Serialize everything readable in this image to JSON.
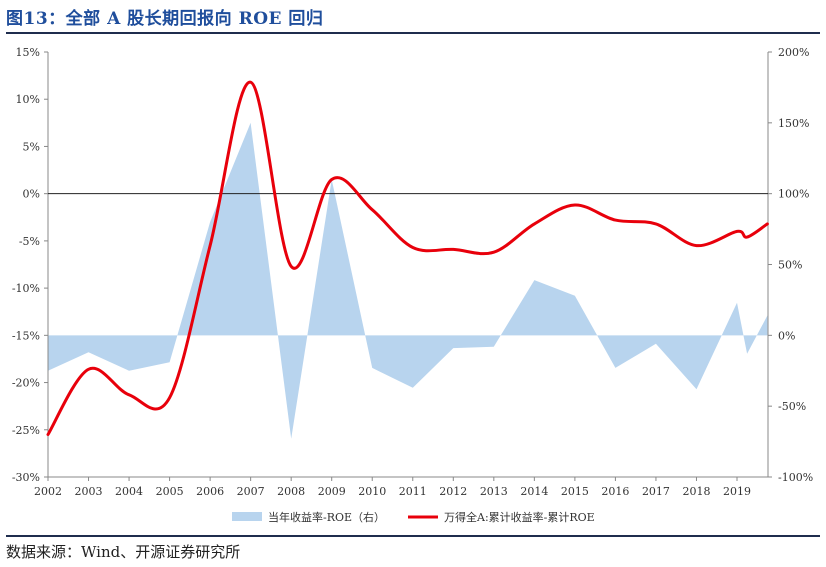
{
  "figure_title": "图13：全部 A 股长期回报向 ROE 回归",
  "source": "数据来源：Wind、开源证券研究所",
  "chart_data": {
    "type": "line",
    "x": [
      "2002",
      "2003",
      "2004",
      "2005",
      "2006",
      "2007",
      "2008",
      "2009",
      "2010",
      "2011",
      "2012",
      "2013",
      "2014",
      "2015",
      "2016",
      "2017",
      "2018",
      "2019"
    ],
    "left_axis": {
      "ylim": [
        -30,
        15
      ],
      "ticks": [
        15,
        10,
        5,
        0,
        -5,
        -10,
        -15,
        -20,
        -25,
        -30
      ],
      "tick_labels": [
        "15%",
        "10%",
        "5%",
        "0%",
        "-5%",
        "-10%",
        "-15%",
        "-20%",
        "-25%",
        "-30%"
      ]
    },
    "right_axis": {
      "ylim": [
        -100,
        200
      ],
      "ticks": [
        200,
        150,
        100,
        50,
        0,
        -50,
        -100
      ],
      "tick_labels": [
        "200%",
        "150%",
        "100%",
        "50%",
        "0%",
        "-50%",
        "-100%"
      ]
    },
    "series": [
      {
        "name": "当年收益率-ROE（右）",
        "type": "area",
        "axis": "right",
        "color": "#b8d4ee",
        "points": [
          [
            2002.0,
            -25
          ],
          [
            2003.0,
            -12
          ],
          [
            2004.0,
            -25
          ],
          [
            2005.0,
            -19
          ],
          [
            2006.0,
            80
          ],
          [
            2007.0,
            150
          ],
          [
            2008.0,
            -73
          ],
          [
            2009.0,
            110
          ],
          [
            2010.0,
            -23
          ],
          [
            2011.0,
            -37
          ],
          [
            2012.0,
            -9
          ],
          [
            2013.0,
            -8
          ],
          [
            2014.0,
            39
          ],
          [
            2015.0,
            28
          ],
          [
            2016.0,
            -23
          ],
          [
            2017.0,
            -6
          ],
          [
            2018.0,
            -38
          ],
          [
            2019.0,
            23
          ],
          [
            2019.25,
            -13
          ],
          [
            2019.75,
            14
          ]
        ]
      },
      {
        "name": "万得全A:累计收益率-累计ROE",
        "type": "line",
        "axis": "left",
        "color": "#e8000b",
        "points": [
          [
            2002.0,
            -25.5
          ],
          [
            2003.0,
            -18.6
          ],
          [
            2004.0,
            -21.3
          ],
          [
            2005.0,
            -21.6
          ],
          [
            2006.0,
            -5.5
          ],
          [
            2007.0,
            11.8
          ],
          [
            2008.0,
            -7.7
          ],
          [
            2009.0,
            1.5
          ],
          [
            2010.0,
            -1.7
          ],
          [
            2011.0,
            -5.7
          ],
          [
            2012.0,
            -5.9
          ],
          [
            2013.0,
            -6.2
          ],
          [
            2014.0,
            -3.2
          ],
          [
            2015.0,
            -1.2
          ],
          [
            2016.0,
            -2.8
          ],
          [
            2017.0,
            -3.2
          ],
          [
            2018.0,
            -5.5
          ],
          [
            2019.0,
            -4.0
          ],
          [
            2019.25,
            -4.6
          ],
          [
            2019.75,
            -3.2
          ]
        ]
      }
    ],
    "legend_placement": "bottom"
  }
}
